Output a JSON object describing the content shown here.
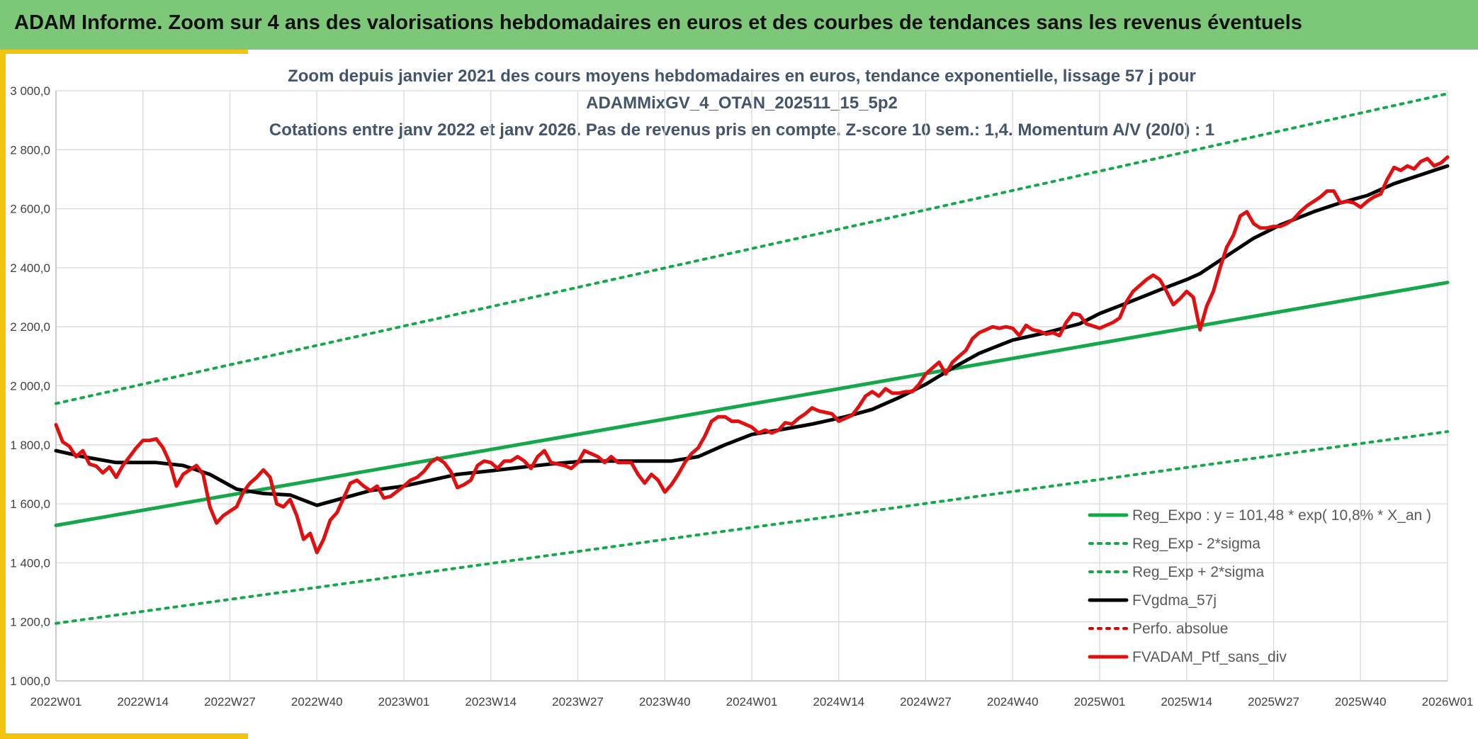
{
  "header": {
    "title": "ADAM Informe. Zoom sur 4 ans des valorisations hebdomadaires en euros et des courbes de tendances sans les revenus éventuels"
  },
  "colors": {
    "banner": "#7dc878",
    "accent": "#f2c40f",
    "regression": "#14a84a",
    "sigma": "#14a84a",
    "moving_average": "#000000",
    "perfo": "#e00000",
    "portfolio": "#e01010",
    "grid": "#d9d9d9"
  },
  "chart_data": {
    "type": "line",
    "title_lines": [
      "Zoom depuis janvier 2021 des cours moyens hebdomadaires en euros, tendance exponentielle, lissage 57 j pour",
      "ADAMMixGV_4_OTAN_202511_15_5p2",
      "Cotations entre janv 2022 et janv 2026. Pas de revenus pris en compte. Z-score 10 sem.: 1,4. Momentum A/V (20/0) : 1"
    ],
    "xlabel": "",
    "ylabel": "",
    "ylim": [
      1000,
      3000
    ],
    "yticks": [
      "1 000,0",
      "1 200,0",
      "1 400,0",
      "1 600,0",
      "1 800,0",
      "2 000,0",
      "2 200,0",
      "2 400,0",
      "2 600,0",
      "2 800,0",
      "3 000,0"
    ],
    "ytick_values": [
      1000,
      1200,
      1400,
      1600,
      1800,
      2000,
      2200,
      2400,
      2600,
      2800,
      3000
    ],
    "xticks": [
      "2022W01",
      "2022W14",
      "2022W27",
      "2022W40",
      "2023W01",
      "2023W14",
      "2023W27",
      "2023W40",
      "2024W01",
      "2024W14",
      "2024W27",
      "2024W40",
      "2025W01",
      "2025W14",
      "2025W27",
      "2025W40",
      "2026W01"
    ],
    "grid": true,
    "legend_position": "bottom-right",
    "x_start": "2022W01",
    "x_end": "2026W01",
    "series": [
      {
        "name": "Reg_Expo : y = 101,48 * exp( 10,8% *  X_an )",
        "style": "solid",
        "color": "#14a84a",
        "width": 5,
        "points": [
          [
            "2022W01",
            1527
          ],
          [
            "2026W01",
            2350
          ]
        ]
      },
      {
        "name": "Reg_Exp - 2*sigma",
        "style": "dotted",
        "color": "#14a84a",
        "width": 4,
        "points": [
          [
            "2022W01",
            1195
          ],
          [
            "2026W01",
            1845
          ]
        ]
      },
      {
        "name": "Reg_Exp + 2*sigma",
        "style": "dotted",
        "color": "#14a84a",
        "width": 4,
        "points": [
          [
            "2022W01",
            1940
          ],
          [
            "2026W01",
            2990
          ]
        ]
      },
      {
        "name": "FVgdma_57j",
        "style": "solid",
        "color": "#000000",
        "width": 5,
        "points": [
          [
            "2022W01",
            1780
          ],
          [
            "2022W05",
            1760
          ],
          [
            "2022W10",
            1740
          ],
          [
            "2022W16",
            1740
          ],
          [
            "2022W20",
            1730
          ],
          [
            "2022W24",
            1700
          ],
          [
            "2022W28",
            1650
          ],
          [
            "2022W32",
            1635
          ],
          [
            "2022W36",
            1630
          ],
          [
            "2022W40",
            1595
          ],
          [
            "2022W44",
            1620
          ],
          [
            "2022W48",
            1645
          ],
          [
            "2023W01",
            1660
          ],
          [
            "2023W05",
            1680
          ],
          [
            "2023W09",
            1700
          ],
          [
            "2023W14",
            1712
          ],
          [
            "2023W19",
            1725
          ],
          [
            "2023W23",
            1735
          ],
          [
            "2023W28",
            1745
          ],
          [
            "2023W33",
            1745
          ],
          [
            "2023W38",
            1745
          ],
          [
            "2023W41",
            1745
          ],
          [
            "2023W45",
            1760
          ],
          [
            "2023W49",
            1800
          ],
          [
            "2024W01",
            1835
          ],
          [
            "2024W05",
            1850
          ],
          [
            "2024W10",
            1870
          ],
          [
            "2024W15",
            1895
          ],
          [
            "2024W19",
            1920
          ],
          [
            "2024W23",
            1960
          ],
          [
            "2024W27",
            2005
          ],
          [
            "2024W31",
            2060
          ],
          [
            "2024W35",
            2110
          ],
          [
            "2024W40",
            2155
          ],
          [
            "2024W45",
            2180
          ],
          [
            "2024W50",
            2210
          ],
          [
            "2025W01",
            2245
          ],
          [
            "2025W05",
            2280
          ],
          [
            "2025W10",
            2325
          ],
          [
            "2025W14",
            2360
          ],
          [
            "2025W16",
            2380
          ],
          [
            "2025W20",
            2440
          ],
          [
            "2025W24",
            2500
          ],
          [
            "2025W28",
            2545
          ],
          [
            "2025W33",
            2590
          ],
          [
            "2025W37",
            2620
          ],
          [
            "2025W41",
            2645
          ],
          [
            "2025W45",
            2685
          ],
          [
            "2025W49",
            2715
          ],
          [
            "2026W01",
            2745
          ]
        ]
      },
      {
        "name": "Perfo. absolue",
        "style": "dotted",
        "color": "#e00000",
        "width": 4,
        "points": []
      },
      {
        "name": "FVADAM_Ptf_sans_div",
        "style": "solid",
        "color": "#e01010",
        "width": 5,
        "points": [
          [
            "2022W01",
            1868
          ],
          [
            "2022W02",
            1810
          ],
          [
            "2022W03",
            1795
          ],
          [
            "2022W04",
            1760
          ],
          [
            "2022W05",
            1780
          ],
          [
            "2022W06",
            1735
          ],
          [
            "2022W07",
            1728
          ],
          [
            "2022W08",
            1705
          ],
          [
            "2022W09",
            1725
          ],
          [
            "2022W10",
            1690
          ],
          [
            "2022W11",
            1730
          ],
          [
            "2022W12",
            1760
          ],
          [
            "2022W13",
            1790
          ],
          [
            "2022W14",
            1815
          ],
          [
            "2022W15",
            1815
          ],
          [
            "2022W16",
            1820
          ],
          [
            "2022W17",
            1790
          ],
          [
            "2022W18",
            1740
          ],
          [
            "2022W19",
            1660
          ],
          [
            "2022W20",
            1700
          ],
          [
            "2022W21",
            1715
          ],
          [
            "2022W22",
            1730
          ],
          [
            "2022W23",
            1700
          ],
          [
            "2022W24",
            1590
          ],
          [
            "2022W25",
            1535
          ],
          [
            "2022W26",
            1560
          ],
          [
            "2022W27",
            1575
          ],
          [
            "2022W28",
            1590
          ],
          [
            "2022W29",
            1640
          ],
          [
            "2022W30",
            1670
          ],
          [
            "2022W31",
            1690
          ],
          [
            "2022W32",
            1715
          ],
          [
            "2022W33",
            1690
          ],
          [
            "2022W34",
            1600
          ],
          [
            "2022W35",
            1590
          ],
          [
            "2022W36",
            1615
          ],
          [
            "2022W37",
            1560
          ],
          [
            "2022W38",
            1480
          ],
          [
            "2022W39",
            1500
          ],
          [
            "2022W40",
            1435
          ],
          [
            "2022W41",
            1480
          ],
          [
            "2022W42",
            1545
          ],
          [
            "2022W43",
            1570
          ],
          [
            "2022W44",
            1620
          ],
          [
            "2022W45",
            1670
          ],
          [
            "2022W46",
            1680
          ],
          [
            "2022W47",
            1660
          ],
          [
            "2022W48",
            1645
          ],
          [
            "2022W49",
            1660
          ],
          [
            "2022W50",
            1620
          ],
          [
            "2022W51",
            1625
          ],
          [
            "2023W01",
            1660
          ],
          [
            "2023W02",
            1680
          ],
          [
            "2023W03",
            1690
          ],
          [
            "2023W04",
            1710
          ],
          [
            "2023W05",
            1740
          ],
          [
            "2023W06",
            1755
          ],
          [
            "2023W07",
            1740
          ],
          [
            "2023W08",
            1710
          ],
          [
            "2023W09",
            1655
          ],
          [
            "2023W10",
            1665
          ],
          [
            "2023W11",
            1680
          ],
          [
            "2023W12",
            1730
          ],
          [
            "2023W13",
            1745
          ],
          [
            "2023W14",
            1740
          ],
          [
            "2023W15",
            1720
          ],
          [
            "2023W16",
            1745
          ],
          [
            "2023W17",
            1745
          ],
          [
            "2023W18",
            1760
          ],
          [
            "2023W19",
            1745
          ],
          [
            "2023W20",
            1720
          ],
          [
            "2023W21",
            1760
          ],
          [
            "2023W22",
            1780
          ],
          [
            "2023W23",
            1740
          ],
          [
            "2023W24",
            1735
          ],
          [
            "2023W25",
            1730
          ],
          [
            "2023W26",
            1720
          ],
          [
            "2023W27",
            1740
          ],
          [
            "2023W28",
            1780
          ],
          [
            "2023W29",
            1770
          ],
          [
            "2023W30",
            1760
          ],
          [
            "2023W31",
            1740
          ],
          [
            "2023W32",
            1760
          ],
          [
            "2023W33",
            1740
          ],
          [
            "2023W34",
            1740
          ],
          [
            "2023W35",
            1740
          ],
          [
            "2023W36",
            1700
          ],
          [
            "2023W37",
            1670
          ],
          [
            "2023W38",
            1700
          ],
          [
            "2023W39",
            1680
          ],
          [
            "2023W40",
            1640
          ],
          [
            "2023W41",
            1665
          ],
          [
            "2023W42",
            1700
          ],
          [
            "2023W43",
            1740
          ],
          [
            "2023W44",
            1770
          ],
          [
            "2023W45",
            1790
          ],
          [
            "2023W46",
            1830
          ],
          [
            "2023W47",
            1880
          ],
          [
            "2023W48",
            1895
          ],
          [
            "2023W49",
            1895
          ],
          [
            "2023W50",
            1880
          ],
          [
            "2023W51",
            1880
          ],
          [
            "2024W01",
            1860
          ],
          [
            "2024W02",
            1840
          ],
          [
            "2024W03",
            1850
          ],
          [
            "2024W04",
            1840
          ],
          [
            "2024W05",
            1850
          ],
          [
            "2024W06",
            1875
          ],
          [
            "2024W07",
            1870
          ],
          [
            "2024W08",
            1890
          ],
          [
            "2024W09",
            1905
          ],
          [
            "2024W10",
            1925
          ],
          [
            "2024W11",
            1915
          ],
          [
            "2024W12",
            1910
          ],
          [
            "2024W13",
            1905
          ],
          [
            "2024W14",
            1880
          ],
          [
            "2024W15",
            1890
          ],
          [
            "2024W16",
            1900
          ],
          [
            "2024W17",
            1930
          ],
          [
            "2024W18",
            1965
          ],
          [
            "2024W19",
            1980
          ],
          [
            "2024W20",
            1965
          ],
          [
            "2024W21",
            1990
          ],
          [
            "2024W22",
            1975
          ],
          [
            "2024W23",
            1975
          ],
          [
            "2024W24",
            1980
          ],
          [
            "2024W25",
            1980
          ],
          [
            "2024W26",
            2005
          ],
          [
            "2024W27",
            2040
          ],
          [
            "2024W28",
            2060
          ],
          [
            "2024W29",
            2080
          ],
          [
            "2024W30",
            2040
          ],
          [
            "2024W31",
            2080
          ],
          [
            "2024W32",
            2100
          ],
          [
            "2024W33",
            2120
          ],
          [
            "2024W34",
            2160
          ],
          [
            "2024W35",
            2180
          ],
          [
            "2024W36",
            2190
          ],
          [
            "2024W37",
            2200
          ],
          [
            "2024W38",
            2195
          ],
          [
            "2024W39",
            2200
          ],
          [
            "2024W40",
            2195
          ],
          [
            "2024W41",
            2170
          ],
          [
            "2024W42",
            2205
          ],
          [
            "2024W43",
            2190
          ],
          [
            "2024W44",
            2185
          ],
          [
            "2024W45",
            2175
          ],
          [
            "2024W46",
            2180
          ],
          [
            "2024W47",
            2170
          ],
          [
            "2024W48",
            2215
          ],
          [
            "2024W49",
            2245
          ],
          [
            "2024W50",
            2240
          ],
          [
            "2024W51",
            2210
          ],
          [
            "2025W01",
            2195
          ],
          [
            "2025W02",
            2205
          ],
          [
            "2025W03",
            2215
          ],
          [
            "2025W04",
            2230
          ],
          [
            "2025W05",
            2285
          ],
          [
            "2025W06",
            2320
          ],
          [
            "2025W07",
            2340
          ],
          [
            "2025W08",
            2360
          ],
          [
            "2025W09",
            2375
          ],
          [
            "2025W10",
            2360
          ],
          [
            "2025W11",
            2320
          ],
          [
            "2025W12",
            2275
          ],
          [
            "2025W13",
            2295
          ],
          [
            "2025W14",
            2320
          ],
          [
            "2025W15",
            2300
          ],
          [
            "2025W16",
            2190
          ],
          [
            "2025W17",
            2270
          ],
          [
            "2025W18",
            2320
          ],
          [
            "2025W19",
            2400
          ],
          [
            "2025W20",
            2470
          ],
          [
            "2025W21",
            2510
          ],
          [
            "2025W22",
            2575
          ],
          [
            "2025W23",
            2590
          ],
          [
            "2025W24",
            2550
          ],
          [
            "2025W25",
            2535
          ],
          [
            "2025W26",
            2535
          ],
          [
            "2025W27",
            2540
          ],
          [
            "2025W28",
            2540
          ],
          [
            "2025W29",
            2550
          ],
          [
            "2025W30",
            2565
          ],
          [
            "2025W31",
            2590
          ],
          [
            "2025W32",
            2610
          ],
          [
            "2025W33",
            2625
          ],
          [
            "2025W34",
            2640
          ],
          [
            "2025W35",
            2660
          ],
          [
            "2025W36",
            2660
          ],
          [
            "2025W37",
            2620
          ],
          [
            "2025W38",
            2625
          ],
          [
            "2025W39",
            2620
          ],
          [
            "2025W40",
            2605
          ],
          [
            "2025W41",
            2625
          ],
          [
            "2025W42",
            2640
          ],
          [
            "2025W43",
            2650
          ],
          [
            "2025W44",
            2700
          ],
          [
            "2025W45",
            2740
          ],
          [
            "2025W46",
            2730
          ],
          [
            "2025W47",
            2745
          ],
          [
            "2025W48",
            2735
          ],
          [
            "2025W49",
            2760
          ],
          [
            "2025W50",
            2770
          ],
          [
            "2025W51",
            2745
          ],
          [
            "2025W52",
            2755
          ],
          [
            "2026W01",
            2775
          ]
        ]
      }
    ]
  }
}
